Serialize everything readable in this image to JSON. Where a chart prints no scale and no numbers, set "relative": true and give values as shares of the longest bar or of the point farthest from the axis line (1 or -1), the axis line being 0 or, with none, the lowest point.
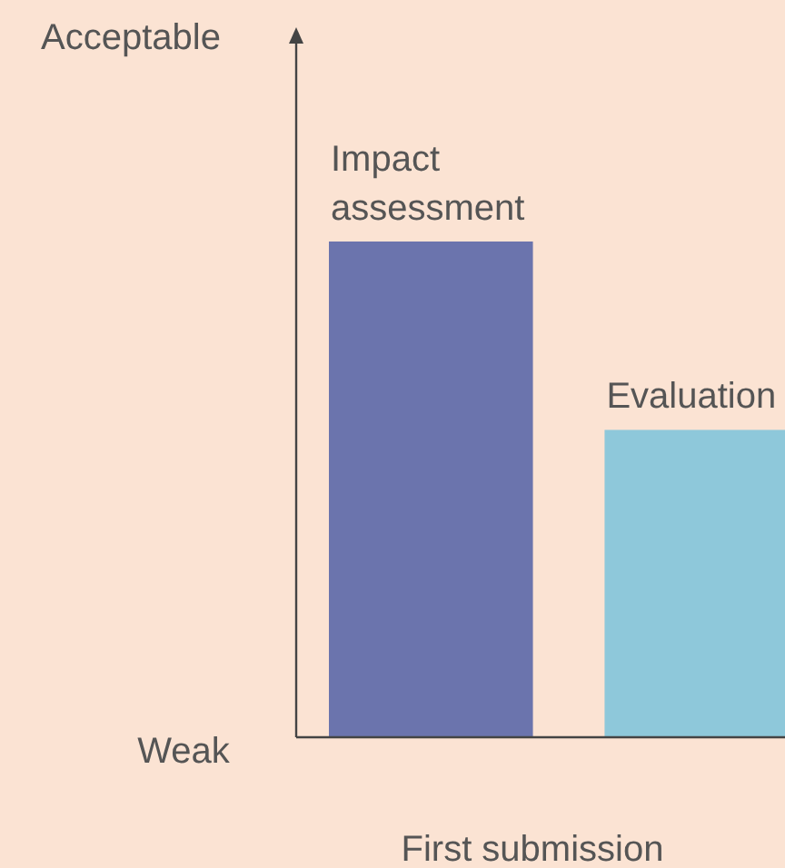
{
  "chart_data": {
    "type": "bar",
    "relative": true,
    "xlabel": "First submission",
    "categories": [
      "Impact assessment",
      "Evaluation"
    ],
    "values": [
      1,
      0.62
    ],
    "colors": [
      "#6b74ad",
      "#8ec8da"
    ],
    "annotations": [
      "Acceptable",
      "Weak"
    ]
  }
}
